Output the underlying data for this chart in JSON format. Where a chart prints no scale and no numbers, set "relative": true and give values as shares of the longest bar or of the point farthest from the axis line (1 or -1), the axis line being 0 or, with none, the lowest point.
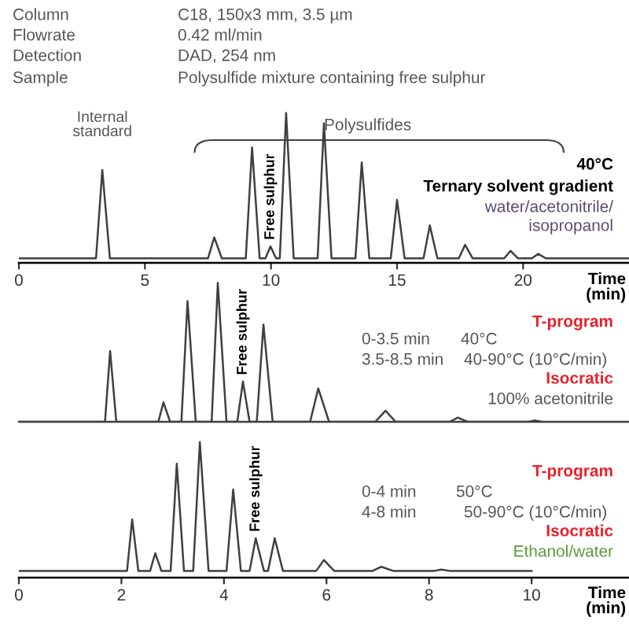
{
  "chart_data": [
    {
      "type": "line",
      "relative": true,
      "xlabel": "Time (min)",
      "xlim": [
        0,
        24.2
      ],
      "xticks": [
        0,
        5,
        10,
        15,
        20
      ],
      "grid": false,
      "legend": false,
      "marker": "none",
      "line_style": "solid",
      "annotations": [
        "Column",
        "C18, 150x3 mm, 3.5 µm",
        "Flowrate",
        "0.42 ml/min",
        "Detection",
        "DAD, 254 nm",
        "Sample",
        "Polysulfide mixture containing free sulphur",
        "40°C",
        "Ternary solvent gradient",
        "water/acetonitrile/",
        "isopropanol",
        "Polysulfides",
        {
          "text": "Internal standard",
          "x": 3.31,
          "y": 0.62
        },
        {
          "text": "Free sulphur",
          "x": 9.98,
          "y": 0.11
        }
      ],
      "series": [
        {
          "color": "#404040",
          "x": [
            0,
            3.06,
            3.31,
            3.61,
            7.5,
            7.75,
            8.05,
            9.0,
            9.25,
            9.55,
            9.78,
            9.98,
            10.2,
            10.35,
            10.6,
            10.9,
            11.85,
            12.1,
            12.4,
            13.35,
            13.6,
            13.9,
            14.75,
            15.0,
            15.3,
            16.05,
            16.3,
            16.6,
            17.45,
            17.7,
            18.0,
            19.25,
            19.5,
            19.8,
            20.35,
            20.6,
            20.9,
            24.2
          ],
          "values": [
            0.03,
            0.03,
            0.62,
            0.03,
            0.03,
            0.17,
            0.03,
            0.03,
            0.77,
            0.03,
            0.03,
            0.11,
            0.03,
            0.03,
            1.0,
            0.03,
            0.03,
            0.93,
            0.03,
            0.03,
            0.67,
            0.03,
            0.03,
            0.42,
            0.03,
            0.03,
            0.25,
            0.03,
            0.03,
            0.12,
            0.03,
            0.03,
            0.08,
            0.03,
            0.03,
            0.06,
            0.03,
            0.03
          ]
        }
      ]
    },
    {
      "type": "line",
      "relative": true,
      "xlim": [
        0,
        11.9
      ],
      "xticks": [
        0,
        2,
        4,
        6,
        8,
        10
      ],
      "tick_labels": false,
      "grid": false,
      "legend": false,
      "marker": "none",
      "line_style": "solid",
      "annotations": [
        "T-program",
        "0-3.5 min",
        "40°C",
        "3.5-8.5 min",
        "40-90°C (10°C/min)",
        "Isocratic",
        "100% acetonitrile",
        {
          "text": "Free sulphur",
          "x": 4.37,
          "y": 0.29
        }
      ],
      "series": [
        {
          "color": "#404040",
          "x": [
            0,
            1.68,
            1.78,
            1.9,
            2.72,
            2.82,
            2.95,
            3.17,
            3.29,
            3.45,
            3.76,
            3.88,
            4.05,
            4.26,
            4.37,
            4.5,
            4.64,
            4.77,
            4.95,
            5.68,
            5.84,
            6.05,
            6.95,
            7.15,
            7.35,
            8.4,
            8.56,
            8.75,
            9.95,
            10.06,
            10.2
          ],
          "values": [
            0,
            0,
            0.51,
            0,
            0,
            0.14,
            0,
            0,
            0.87,
            0,
            0,
            1.0,
            0,
            0,
            0.29,
            0,
            0,
            0.7,
            0,
            0,
            0.24,
            0,
            0,
            0.08,
            0,
            0,
            0.03,
            0,
            0,
            0.01,
            0
          ]
        }
      ]
    },
    {
      "type": "line",
      "relative": true,
      "xlabel": "Time (min)",
      "xlim": [
        0,
        11.9
      ],
      "xticks": [
        0,
        2,
        4,
        6,
        8,
        10
      ],
      "grid": false,
      "legend": false,
      "marker": "none",
      "line_style": "solid",
      "annotations": [
        "T-program",
        "0-4 min",
        "50°C",
        "4-8 min",
        "50-90°C (10°C/min)",
        "Isocratic",
        "Ethanol/water",
        {
          "text": "Free sulphur",
          "x": 4.62,
          "y": 0.29
        }
      ],
      "series": [
        {
          "color": "#404040",
          "x": [
            0,
            2.11,
            2.21,
            2.33,
            2.56,
            2.66,
            2.78,
            2.96,
            3.08,
            3.22,
            3.4,
            3.53,
            3.7,
            4.05,
            4.18,
            4.33,
            4.5,
            4.62,
            4.78,
            4.86,
            4.99,
            5.15,
            5.8,
            5.95,
            6.15,
            6.9,
            7.07,
            7.3,
            8.1,
            8.24,
            8.4,
            10.0
          ],
          "values": [
            0.05,
            0.05,
            0.43,
            0.05,
            0.05,
            0.18,
            0.05,
            0.05,
            0.84,
            0.05,
            0.05,
            1.0,
            0.05,
            0.05,
            0.65,
            0.05,
            0.05,
            0.29,
            0.05,
            0.05,
            0.29,
            0.05,
            0.05,
            0.13,
            0.05,
            0.05,
            0.08,
            0.05,
            0.05,
            0.06,
            0.05,
            0.05
          ]
        }
      ]
    }
  ]
}
